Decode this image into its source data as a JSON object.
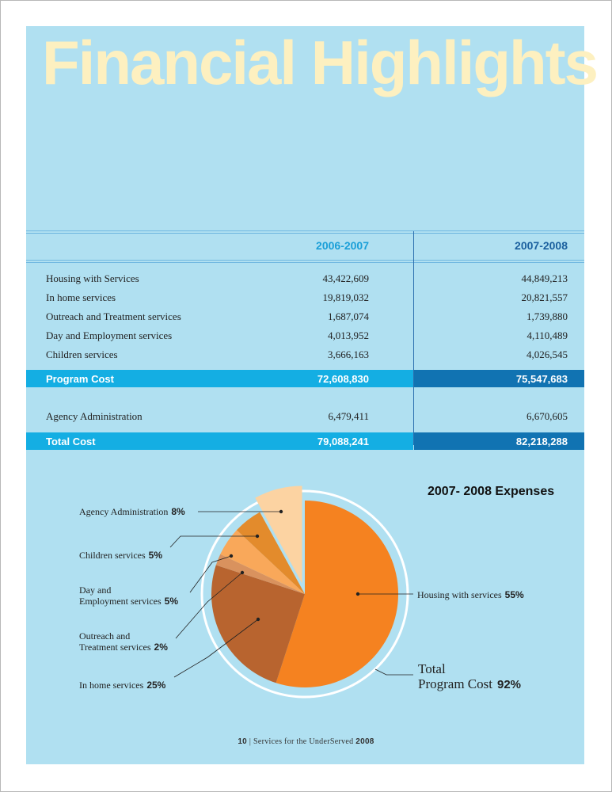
{
  "title": "Financial Highlights",
  "table": {
    "col_headers": [
      "2006-2007",
      "2007-2008"
    ],
    "rows": [
      {
        "label": "Housing with Services",
        "v1": "43,422,609",
        "v2": "44,849,213"
      },
      {
        "label": "In home services",
        "v1": "19,819,032",
        "v2": "20,821,557"
      },
      {
        "label": "Outreach and Treatment services",
        "v1": "1,687,074",
        "v2": "1,739,880"
      },
      {
        "label": "Day and Employment services",
        "v1": "4,013,952",
        "v2": "4,110,489"
      },
      {
        "label": "Children services",
        "v1": "3,666,163",
        "v2": "4,026,545"
      }
    ],
    "program_cost": {
      "label": "Program Cost",
      "v1": "72,608,830",
      "v2": "75,547,683"
    },
    "admin": {
      "label": "Agency Administration",
      "v1": "6,479,411",
      "v2": "6,670,605"
    },
    "total_cost": {
      "label": "Total Cost",
      "v1": "79,088,241",
      "v2": "82,218,288"
    }
  },
  "chart_data": {
    "type": "pie",
    "title": "2007- 2008 Expenses",
    "slices": [
      {
        "label": "Housing with services",
        "value": 55,
        "color": "#f58220"
      },
      {
        "label": "In home services",
        "value": 25,
        "color": "#b8642f"
      },
      {
        "label": "Outreach and Treatment services",
        "value": 2,
        "color": "#d9925e"
      },
      {
        "label": "Day and Employment services",
        "value": 5,
        "color": "#f9a85a"
      },
      {
        "label": "Children services",
        "value": 5,
        "color": "#e38b2c"
      },
      {
        "label": "Agency Administration",
        "value": 8,
        "color": "#fcd3a2"
      }
    ],
    "legend": {
      "admin_label": "Agency Administration",
      "admin_pct": "8%",
      "children_label": "Children services",
      "children_pct": "5%",
      "day_label_1": "Day and",
      "day_label_2": "Employment services",
      "day_pct": "5%",
      "outreach_label_1": "Outreach and",
      "outreach_label_2": "Treatment services",
      "outreach_pct": "2%",
      "inhome_label": "In home services",
      "inhome_pct": "25%",
      "housing_label": "Housing with services",
      "housing_pct": "55%"
    },
    "total_label_1": "Total",
    "total_label_2": "Program Cost",
    "total_pct": "92%"
  },
  "footer": {
    "page": "10",
    "sep": "|",
    "text": "Services for the UnderServed",
    "year": "2008"
  }
}
